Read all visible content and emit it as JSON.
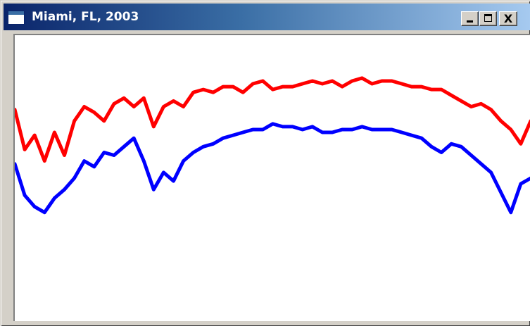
{
  "window": {
    "title": "Miami, FL, 2003",
    "controls": {
      "minimize": "",
      "maximize": "",
      "close": "X"
    }
  },
  "chart_data": {
    "type": "line",
    "title": "",
    "xlabel": "",
    "ylabel": "",
    "x": [
      1,
      8,
      15,
      22,
      29,
      36,
      43,
      50,
      57,
      64,
      71,
      78,
      85,
      92,
      99,
      106,
      113,
      120,
      127,
      134,
      141,
      148,
      155,
      162,
      169,
      176,
      183,
      190,
      197,
      204,
      211,
      218,
      225,
      232,
      239,
      246,
      253,
      260,
      267,
      274,
      281,
      288,
      295,
      302,
      309,
      316,
      323,
      330,
      337,
      344,
      351,
      358,
      365
    ],
    "xlim": [
      1,
      365
    ],
    "ylim": [
      0,
      100
    ],
    "grid": false,
    "series": [
      {
        "color": "#ff0000",
        "values": [
          74,
          60,
          65,
          56,
          66,
          58,
          70,
          75,
          73,
          70,
          76,
          78,
          75,
          78,
          68,
          75,
          77,
          75,
          80,
          81,
          80,
          82,
          82,
          80,
          83,
          84,
          81,
          82,
          82,
          83,
          84,
          83,
          84,
          82,
          84,
          85,
          83,
          84,
          84,
          83,
          82,
          82,
          81,
          81,
          79,
          77,
          75,
          76,
          74,
          70,
          67,
          62,
          70
        ]
      },
      {
        "color": "#0000ff",
        "values": [
          55,
          44,
          40,
          38,
          43,
          46,
          50,
          56,
          54,
          59,
          58,
          61,
          64,
          56,
          46,
          52,
          49,
          56,
          59,
          61,
          62,
          64,
          65,
          66,
          67,
          67,
          69,
          68,
          68,
          67,
          68,
          66,
          66,
          67,
          67,
          68,
          67,
          67,
          67,
          66,
          65,
          64,
          61,
          59,
          62,
          61,
          58,
          55,
          52,
          45,
          38,
          48,
          50
        ]
      }
    ]
  }
}
